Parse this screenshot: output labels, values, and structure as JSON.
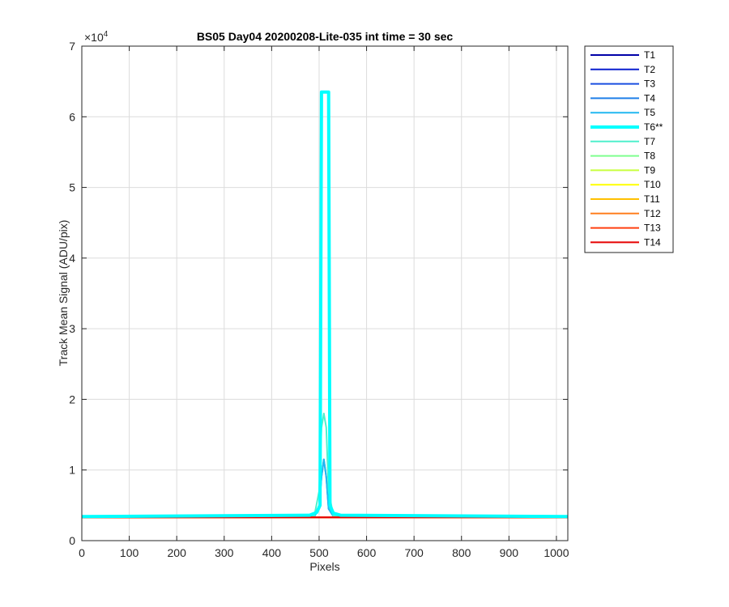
{
  "chart_data": {
    "type": "line",
    "title": "BS05 Day04 20200208-Lite-035 int time = 30 sec",
    "xlabel": "Pixels",
    "ylabel": "Track Mean Signal (ADU/pix)",
    "xlim": [
      0,
      1024
    ],
    "ylim": [
      0,
      70000
    ],
    "xticks": [
      0,
      100,
      200,
      300,
      400,
      500,
      600,
      700,
      800,
      900,
      1000
    ],
    "xtick_labels": [
      "0",
      "100",
      "200",
      "300",
      "400",
      "500",
      "600",
      "700",
      "800",
      "900",
      "1000"
    ],
    "yticks": [
      0,
      10000,
      20000,
      30000,
      40000,
      50000,
      60000,
      70000
    ],
    "ytick_labels": [
      "0",
      "1",
      "2",
      "3",
      "4",
      "5",
      "6",
      "7"
    ],
    "y_exponent_base": "×10",
    "y_exponent_power": "4",
    "grid": true,
    "legend_position": "outside-top-right",
    "series": [
      {
        "name": "T1",
        "color": "#0000a8",
        "width": 2,
        "points": [
          [
            0,
            3300
          ],
          [
            1024,
            3300
          ]
        ]
      },
      {
        "name": "T2",
        "color": "#0a1fcf",
        "width": 2,
        "points": [
          [
            0,
            3300
          ],
          [
            1024,
            3300
          ]
        ]
      },
      {
        "name": "T3",
        "color": "#1a4fe0",
        "width": 2,
        "points": [
          [
            0,
            3300
          ],
          [
            1024,
            3300
          ]
        ]
      },
      {
        "name": "T4",
        "color": "#1f7fe8",
        "width": 2,
        "points": [
          [
            0,
            3350
          ],
          [
            490,
            3450
          ],
          [
            500,
            4500
          ],
          [
            505,
            9000
          ],
          [
            510,
            11500
          ],
          [
            515,
            9000
          ],
          [
            520,
            4500
          ],
          [
            530,
            3450
          ],
          [
            1024,
            3350
          ]
        ]
      },
      {
        "name": "T5",
        "color": "#22b8f0",
        "width": 2,
        "points": [
          [
            0,
            3350
          ],
          [
            490,
            3450
          ],
          [
            500,
            4500
          ],
          [
            505,
            9000
          ],
          [
            510,
            11500
          ],
          [
            515,
            9000
          ],
          [
            520,
            4500
          ],
          [
            530,
            3450
          ],
          [
            1024,
            3350
          ]
        ]
      },
      {
        "name": "T6**",
        "color": "#00ffff",
        "width": 4,
        "points": [
          [
            0,
            3400
          ],
          [
            480,
            3600
          ],
          [
            495,
            4000
          ],
          [
            502,
            5000
          ],
          [
            505,
            63500
          ],
          [
            520,
            63500
          ],
          [
            523,
            5000
          ],
          [
            530,
            3900
          ],
          [
            545,
            3600
          ],
          [
            1024,
            3400
          ]
        ]
      },
      {
        "name": "T7",
        "color": "#4ff0cc",
        "width": 2,
        "points": [
          [
            0,
            3350
          ],
          [
            490,
            3550
          ],
          [
            500,
            7000
          ],
          [
            505,
            16000
          ],
          [
            510,
            18000
          ],
          [
            515,
            16000
          ],
          [
            520,
            7000
          ],
          [
            530,
            3550
          ],
          [
            1024,
            3350
          ]
        ]
      },
      {
        "name": "T8",
        "color": "#7fff8f",
        "width": 2,
        "points": [
          [
            0,
            3300
          ],
          [
            1024,
            3300
          ]
        ]
      },
      {
        "name": "T9",
        "color": "#c8ff3f",
        "width": 2,
        "points": [
          [
            0,
            3300
          ],
          [
            1024,
            3300
          ]
        ]
      },
      {
        "name": "T10",
        "color": "#ffff00",
        "width": 2,
        "points": [
          [
            0,
            3300
          ],
          [
            1024,
            3300
          ]
        ]
      },
      {
        "name": "T11",
        "color": "#ffc000",
        "width": 2,
        "points": [
          [
            0,
            3300
          ],
          [
            1024,
            3300
          ]
        ]
      },
      {
        "name": "T12",
        "color": "#ff7f1f",
        "width": 2,
        "points": [
          [
            0,
            3300
          ],
          [
            1024,
            3300
          ]
        ]
      },
      {
        "name": "T13",
        "color": "#ff4010",
        "width": 2,
        "points": [
          [
            0,
            3300
          ],
          [
            1024,
            3300
          ]
        ]
      },
      {
        "name": "T14",
        "color": "#e60000",
        "width": 2,
        "points": [
          [
            0,
            3300
          ],
          [
            1024,
            3300
          ]
        ]
      }
    ]
  }
}
